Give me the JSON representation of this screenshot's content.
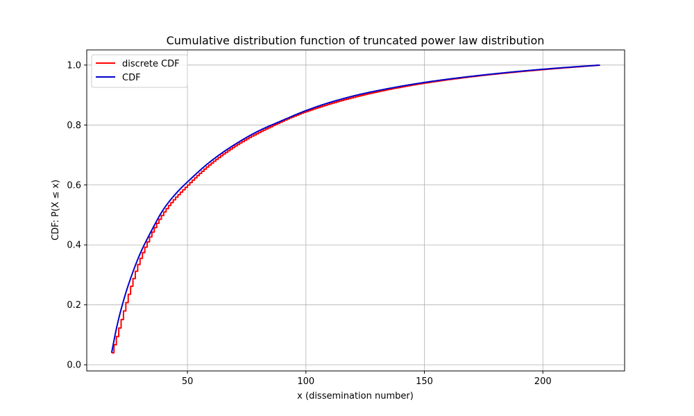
{
  "chart_data": {
    "type": "line",
    "title": "Cumulative distribution function of truncated power law distribution",
    "xlabel": "x (dissemination number)",
    "ylabel": "CDF: P(X ≤ x)",
    "xlim": [
      7.5,
      234.5
    ],
    "ylim": [
      -0.0205,
      1.0505
    ],
    "xticks": [
      50,
      100,
      150,
      200
    ],
    "yticks": [
      0.0,
      0.2,
      0.4,
      0.6,
      0.8,
      1.0
    ],
    "xtick_labels": [
      "50",
      "100",
      "150",
      "200"
    ],
    "ytick_labels": [
      "0.0",
      "0.2",
      "0.4",
      "0.6",
      "0.8",
      "1.0"
    ],
    "grid": true,
    "legend_position": "top-left",
    "series": [
      {
        "name": "discrete CDF",
        "color": "#ff0000",
        "style": "step",
        "x": [
          18,
          30,
          40,
          50,
          60,
          70,
          80,
          100,
          125,
          150,
          175,
          200,
          224
        ],
        "y": [
          0.04,
          0.355,
          0.51,
          0.6,
          0.673,
          0.73,
          0.775,
          0.845,
          0.902,
          0.94,
          0.966,
          0.985,
          1.0
        ]
      },
      {
        "name": "CDF",
        "color": "#0000cc",
        "style": "line",
        "x": [
          18,
          20,
          22,
          25,
          30,
          35,
          40,
          45,
          50,
          60,
          70,
          80,
          90,
          100,
          110,
          125,
          150,
          175,
          200,
          224
        ],
        "y": [
          0.04,
          0.12,
          0.185,
          0.265,
          0.37,
          0.45,
          0.52,
          0.57,
          0.61,
          0.68,
          0.735,
          0.78,
          0.815,
          0.848,
          0.875,
          0.906,
          0.942,
          0.967,
          0.986,
          1.0
        ]
      }
    ]
  }
}
